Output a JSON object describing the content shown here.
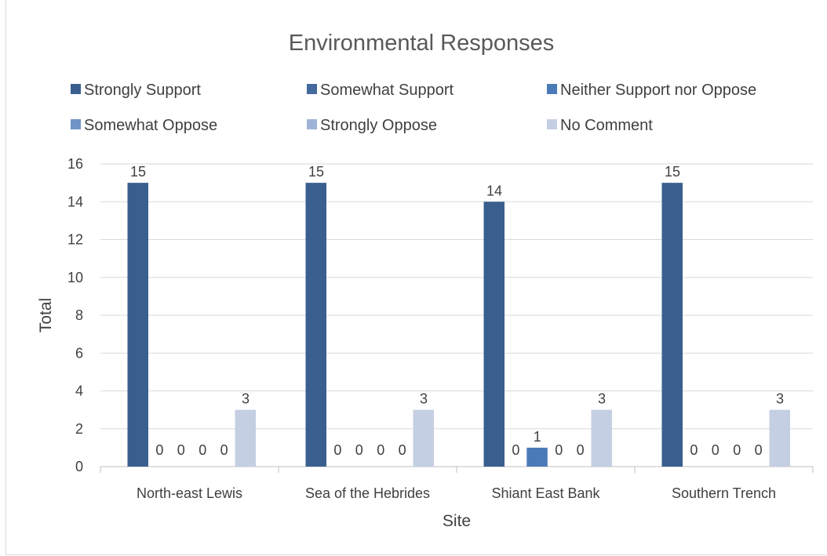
{
  "chart_data": {
    "type": "bar",
    "title": "Environmental Responses",
    "xlabel": "Site",
    "ylabel": "Total",
    "ylim": [
      0,
      16
    ],
    "yticks": [
      0,
      2,
      4,
      6,
      8,
      10,
      12,
      14,
      16
    ],
    "grid": true,
    "legend_position": "top",
    "categories": [
      "North-east Lewis",
      "Sea of the Hebrides",
      "Shiant East Bank",
      "Southern Trench"
    ],
    "series": [
      {
        "name": "Strongly Support",
        "color": "#3a5f8f",
        "values": [
          15,
          15,
          14,
          15
        ]
      },
      {
        "name": "Somewhat Support",
        "color": "#43699e",
        "values": [
          0,
          0,
          0,
          0
        ]
      },
      {
        "name": "Neither Support nor Oppose",
        "color": "#4a7ab8",
        "values": [
          0,
          0,
          1,
          0
        ]
      },
      {
        "name": "Somewhat Oppose",
        "color": "#6f93c7",
        "values": [
          0,
          0,
          0,
          0
        ]
      },
      {
        "name": "Strongly Oppose",
        "color": "#9fb3d6",
        "values": [
          0,
          0,
          0,
          0
        ]
      },
      {
        "name": "No Comment",
        "color": "#c5cfe3",
        "values": [
          3,
          3,
          3,
          3
        ]
      }
    ]
  }
}
